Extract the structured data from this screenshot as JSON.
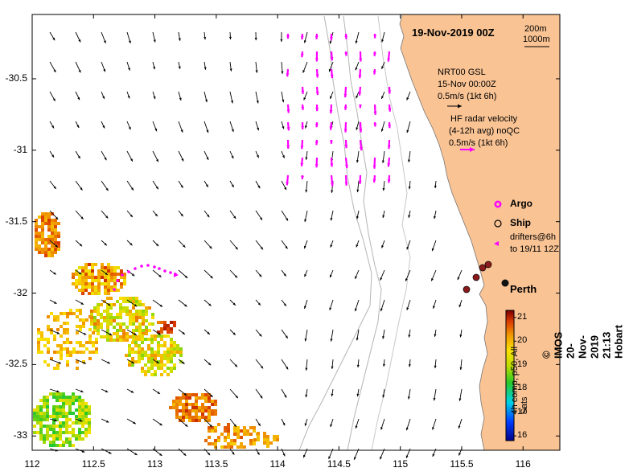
{
  "title": "19-Nov-2019 00Z",
  "scale": {
    "depth1": "200m",
    "depth2": "1000m"
  },
  "nrt": {
    "line1": "NRT00 GSL",
    "line2": "15-Nov 00:00Z",
    "line3": "0.5m/s (1kt 6h)"
  },
  "hf": {
    "line1": "HF radar velocity",
    "line2": "(4-12h avg) noQC",
    "line3": "0.5m/s (1kt 6h)"
  },
  "legend": {
    "argo": "Argo",
    "ship": "Ship",
    "drifters1": "drifters@6h",
    "drifters2": "to 19/11 12Z"
  },
  "city": "Perth",
  "axes": {
    "x_ticks": [
      "112",
      "112.5",
      "113",
      "113.5",
      "114",
      "114.5",
      "115",
      "115.5",
      "116"
    ],
    "y_ticks": [
      "-30.5",
      "-31",
      "-31.5",
      "-32",
      "-32.5",
      "-33"
    ],
    "xlim": [
      112,
      116.3
    ],
    "ylim": [
      -33.1,
      -30.05
    ]
  },
  "colorbar": {
    "ticks": [
      "21",
      "20",
      "19",
      "18",
      "17",
      "16"
    ],
    "range": [
      15.8,
      21.3
    ],
    "label": "4h comp, p50, All Sats"
  },
  "credit": "© IMOS 20-Nov-2019 21:13 Hobart",
  "colors": {
    "land": "#F9C394",
    "hf": "#FF00FF",
    "ship": "#8B1A1A"
  }
}
